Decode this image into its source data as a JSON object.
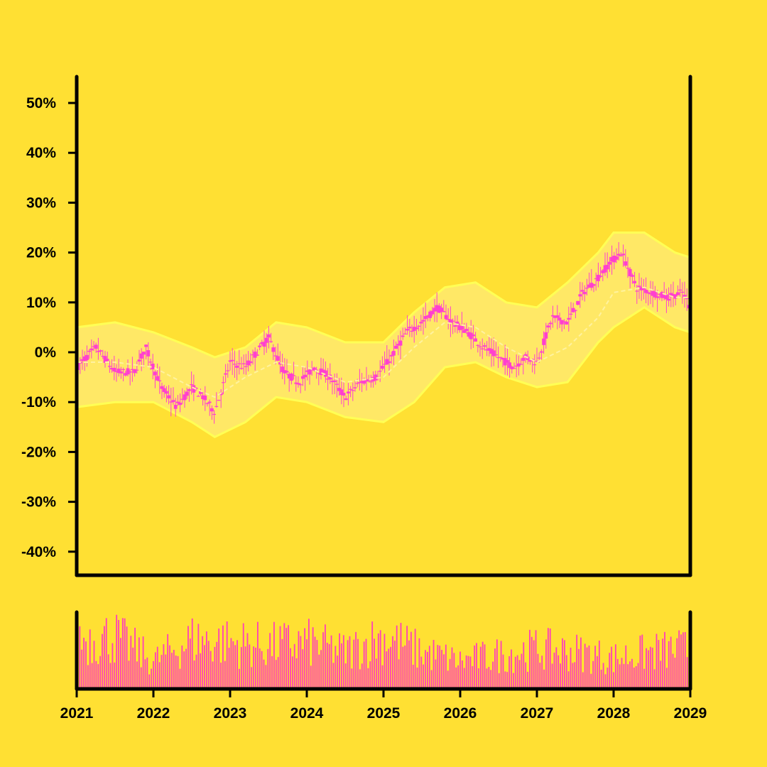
{
  "chart_data": {
    "type": "candlestick",
    "title": "",
    "xlabel": "",
    "ylabel": "",
    "y_unit": "%",
    "x_range": [
      2021,
      2029
    ],
    "ylim": [
      -45,
      55
    ],
    "y_ticks": [
      50,
      40,
      30,
      20,
      10,
      0,
      -10,
      -20,
      -30,
      -40
    ],
    "y_tick_labels": [
      "50%",
      "40%",
      "30%",
      "20%",
      "10%",
      "0%",
      "-10%",
      "-20%",
      "-30%",
      "-40%"
    ],
    "x_ticks": [
      2021,
      2022,
      2023,
      2024,
      2025,
      2026,
      2027,
      2028,
      2029
    ],
    "x_tick_labels": [
      "2021",
      "2022",
      "2023",
      "2024",
      "2025",
      "2026",
      "2027",
      "2028",
      "2029"
    ],
    "grid": false,
    "price_series": {
      "x": [
        2021.0,
        2021.25,
        2021.5,
        2021.75,
        2021.9,
        2022.1,
        2022.3,
        2022.5,
        2022.65,
        2022.8,
        2023.0,
        2023.2,
        2023.4,
        2023.5,
        2023.7,
        2023.9,
        2024.1,
        2024.3,
        2024.5,
        2024.7,
        2024.9,
        2025.1,
        2025.3,
        2025.5,
        2025.7,
        2025.9,
        2026.1,
        2026.3,
        2026.5,
        2026.7,
        2026.85,
        2027.0,
        2027.2,
        2027.4,
        2027.6,
        2027.8,
        2027.95,
        2028.1,
        2028.3,
        2028.5,
        2028.7,
        2028.9,
        2029.0
      ],
      "y": [
        -3,
        1,
        -4,
        -4,
        1,
        -7,
        -11,
        -7,
        -9,
        -12,
        -2,
        -3,
        1,
        3,
        -4,
        -6,
        -3,
        -5,
        -9,
        -6,
        -5,
        -1,
        4,
        6,
        9,
        6,
        4,
        1,
        -1,
        -3,
        -1,
        -2,
        7,
        6,
        12,
        15,
        18,
        20,
        13,
        12,
        11,
        12,
        9
      ]
    },
    "moving_average": {
      "x": [
        2021.0,
        2021.5,
        2022.0,
        2022.5,
        2022.8,
        2023.2,
        2023.6,
        2024.0,
        2024.5,
        2025.0,
        2025.4,
        2025.8,
        2026.2,
        2026.6,
        2027.0,
        2027.4,
        2027.8,
        2028.0,
        2028.4,
        2028.8,
        2029.0
      ],
      "y": [
        -2,
        -2,
        -3,
        -7,
        -9,
        -5,
        -2,
        -3,
        -6,
        -5,
        1,
        6,
        5,
        1,
        -2,
        1,
        7,
        12,
        13,
        11,
        11
      ]
    },
    "band_upper": {
      "x": [
        2021.0,
        2021.5,
        2022.0,
        2022.5,
        2022.8,
        2023.2,
        2023.6,
        2024.0,
        2024.5,
        2025.0,
        2025.4,
        2025.8,
        2026.2,
        2026.6,
        2027.0,
        2027.4,
        2027.8,
        2028.0,
        2028.4,
        2028.8,
        2029.0
      ],
      "y": [
        5,
        6,
        4,
        1,
        -1,
        1,
        6,
        5,
        2,
        2,
        8,
        13,
        14,
        10,
        9,
        14,
        20,
        24,
        24,
        20,
        19
      ]
    },
    "band_lower": {
      "x": [
        2021.0,
        2021.5,
        2022.0,
        2022.5,
        2022.8,
        2023.2,
        2023.6,
        2024.0,
        2024.5,
        2025.0,
        2025.4,
        2025.8,
        2026.2,
        2026.6,
        2027.0,
        2027.4,
        2027.8,
        2028.0,
        2028.4,
        2028.8,
        2029.0
      ],
      "y": [
        -11,
        -10,
        -10,
        -14,
        -17,
        -14,
        -9,
        -10,
        -13,
        -14,
        -10,
        -3,
        -2,
        -5,
        -7,
        -6,
        2,
        5,
        9,
        5,
        4
      ]
    },
    "volume_envelope": {
      "x": [
        2021.0,
        2021.5,
        2022.0,
        2022.5,
        2023.0,
        2023.5,
        2024.0,
        2024.5,
        2025.0,
        2025.5,
        2026.0,
        2026.5,
        2027.0,
        2027.5,
        2028.0,
        2028.5,
        2029.0
      ],
      "y": [
        0.8,
        0.85,
        0.45,
        0.8,
        0.75,
        0.7,
        0.75,
        0.6,
        0.85,
        0.6,
        0.45,
        0.55,
        0.65,
        0.6,
        0.5,
        0.6,
        0.65
      ]
    },
    "colors": {
      "background": "#ffe033",
      "candles": "#ff3fd0",
      "volume": "#ff3fb8",
      "band_fill": "#ffe866",
      "band_edge": "#ffff55",
      "moving_average": "#fff2a0",
      "axes": "#000000"
    }
  }
}
